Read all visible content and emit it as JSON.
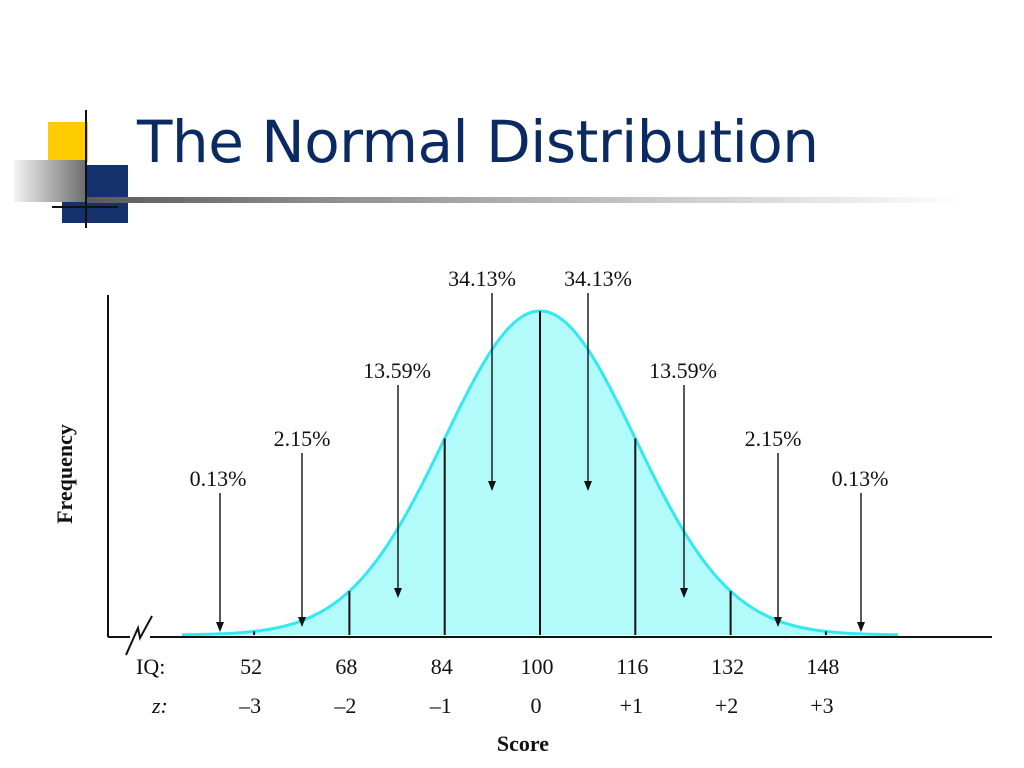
{
  "slide": {
    "title": "The Normal Distribution"
  },
  "colors": {
    "title": "#0b2a63",
    "accent_yellow": "#ffcc00",
    "accent_navy": "#15316b",
    "curve": "#33e8f0",
    "fill": "#b3fbfb"
  },
  "chart_data": {
    "type": "area",
    "title": "",
    "ylabel": "Frequency",
    "xlabel": "Score",
    "mean": 100,
    "sd": 16,
    "x_rows": [
      {
        "label": "IQ:",
        "ticks": [
          "52",
          "68",
          "84",
          "100",
          "116",
          "132",
          "148"
        ]
      },
      {
        "label": "z:",
        "ticks": [
          "–3",
          "–2",
          "–1",
          "0",
          "+1",
          "+2",
          "+3"
        ]
      }
    ],
    "iq_values": [
      52,
      68,
      84,
      100,
      116,
      132,
      148
    ],
    "z_values": [
      -3,
      -2,
      -1,
      0,
      1,
      2,
      3
    ],
    "region_percentages": [
      {
        "label": "0.13%",
        "from_z": null,
        "to_z": -3
      },
      {
        "label": "2.15%",
        "from_z": -3,
        "to_z": -2
      },
      {
        "label": "13.59%",
        "from_z": -2,
        "to_z": -1
      },
      {
        "label": "34.13%",
        "from_z": -1,
        "to_z": 0
      },
      {
        "label": "34.13%",
        "from_z": 0,
        "to_z": 1
      },
      {
        "label": "13.59%",
        "from_z": 1,
        "to_z": 2
      },
      {
        "label": "2.15%",
        "from_z": 2,
        "to_z": 3
      },
      {
        "label": "0.13%",
        "from_z": 3,
        "to_z": null
      }
    ],
    "x_axis_break": true,
    "grid": false,
    "legend": "none"
  }
}
